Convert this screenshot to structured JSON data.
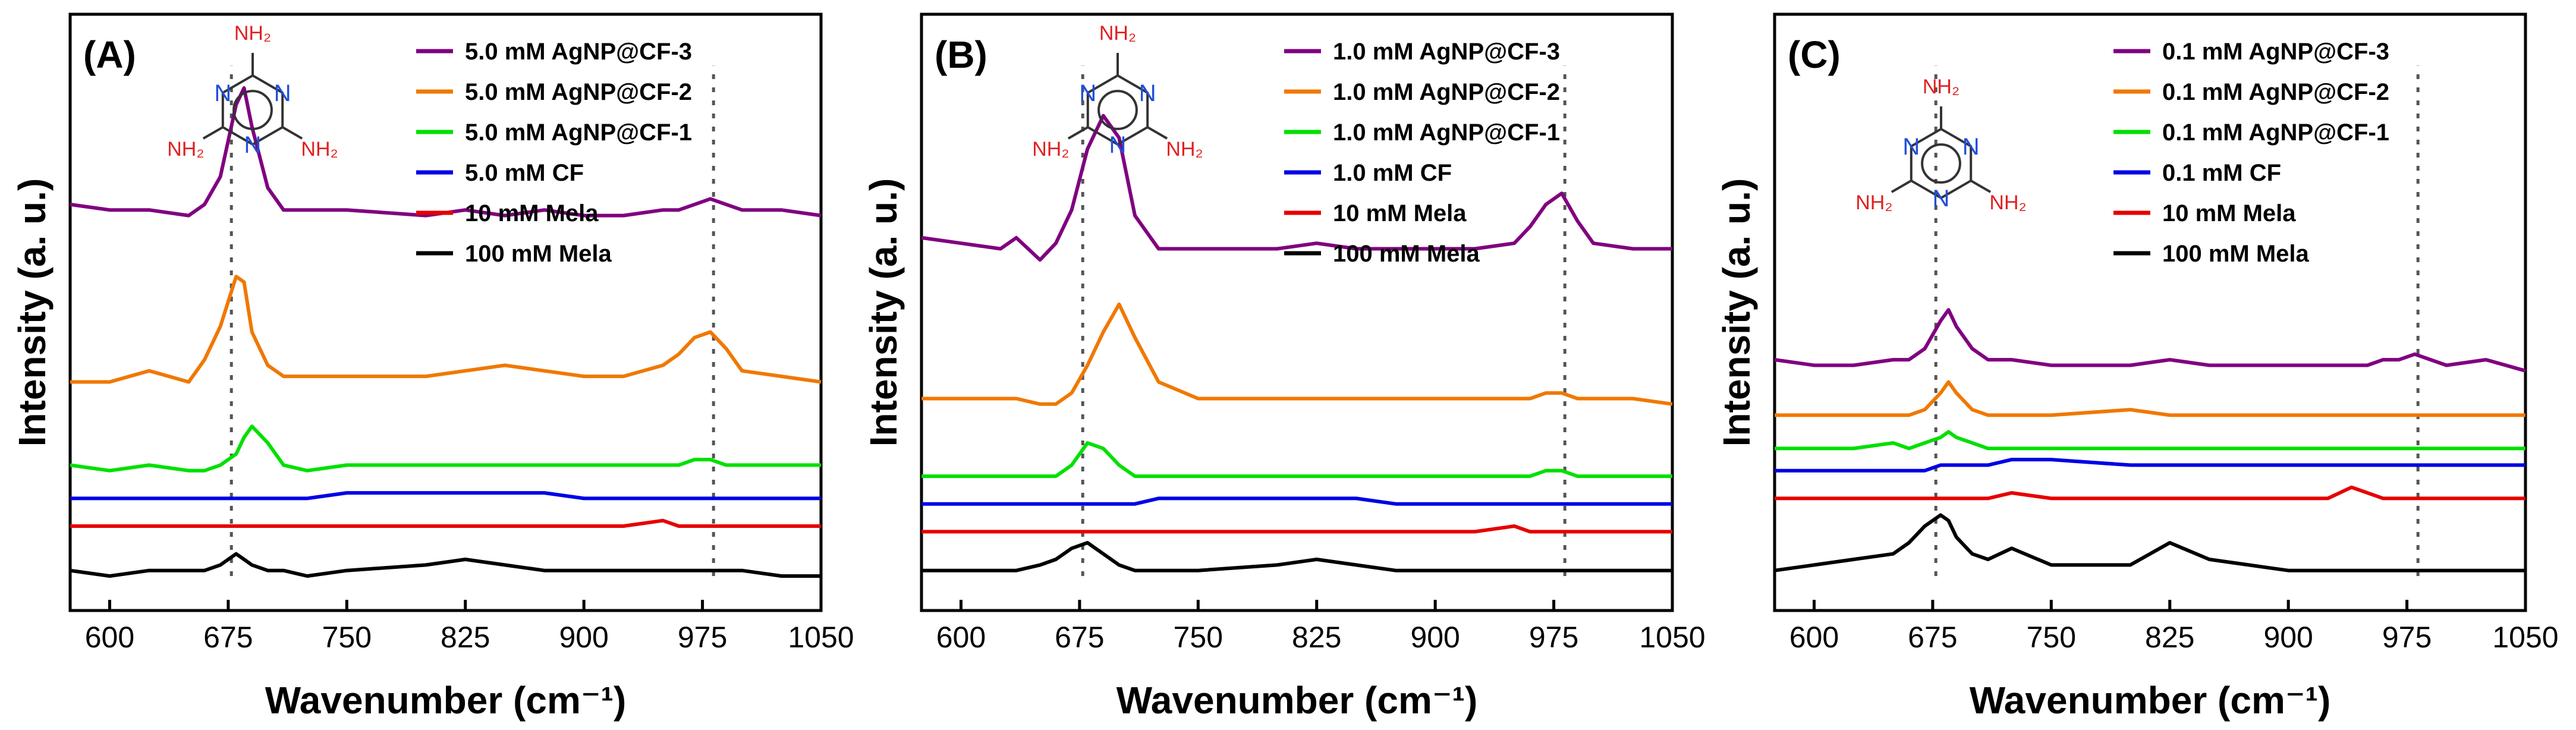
{
  "figure": {
    "xlabel": "Wavenumber (cm⁻¹)",
    "ylabel": "Intensity (a. u.)",
    "series_colors": {
      "AgNP@CF-3": "#800080",
      "AgNP@CF-2": "#f07800",
      "AgNP@CF-1": "#00e000",
      "CF": "#0000e6",
      "10 mM Mela": "#e60000",
      "100 mM Mela": "#000000"
    },
    "molecule": {
      "name": "melamine",
      "ring_atom": "N",
      "substituent": "NH₂"
    }
  },
  "chart_data": [
    {
      "type": "line",
      "panel_label": "(A)",
      "xlabel": "Wavenumber (cm⁻¹)",
      "ylabel": "Intensity (a. u.)",
      "xlim": [
        575,
        1050
      ],
      "ylim": [
        0,
        1
      ],
      "xticks": [
        600,
        675,
        750,
        825,
        900,
        975,
        1050
      ],
      "x": [
        575,
        600,
        625,
        650,
        660,
        670,
        680,
        685,
        690,
        700,
        710,
        725,
        750,
        800,
        825,
        850,
        875,
        900,
        925,
        950,
        960,
        970,
        980,
        990,
        1000,
        1025,
        1050
      ],
      "reference_lines": [
        677,
        982
      ],
      "legend": [
        "5.0 mM AgNP@CF-3",
        "5.0 mM AgNP@CF-2",
        "5.0 mM AgNP@CF-1",
        "5.0 mM CF",
        "10 mM Mela",
        "100 mM Mela"
      ],
      "series": [
        {
          "name": "5.0 mM AgNP@CF-3",
          "values": [
            0.7,
            0.69,
            0.69,
            0.68,
            0.7,
            0.75,
            0.88,
            0.91,
            0.84,
            0.73,
            0.69,
            0.69,
            0.69,
            0.68,
            0.69,
            0.68,
            0.69,
            0.68,
            0.68,
            0.69,
            0.69,
            0.7,
            0.71,
            0.7,
            0.69,
            0.69,
            0.68
          ]
        },
        {
          "name": "5.0 mM AgNP@CF-2",
          "values": [
            0.38,
            0.38,
            0.4,
            0.38,
            0.42,
            0.48,
            0.57,
            0.56,
            0.47,
            0.41,
            0.39,
            0.39,
            0.39,
            0.39,
            0.4,
            0.41,
            0.4,
            0.39,
            0.39,
            0.41,
            0.43,
            0.46,
            0.47,
            0.44,
            0.4,
            0.39,
            0.38
          ]
        },
        {
          "name": "5.0 mM AgNP@CF-1",
          "values": [
            0.23,
            0.22,
            0.23,
            0.22,
            0.22,
            0.23,
            0.25,
            0.28,
            0.3,
            0.27,
            0.23,
            0.22,
            0.23,
            0.23,
            0.23,
            0.23,
            0.23,
            0.23,
            0.23,
            0.23,
            0.23,
            0.24,
            0.24,
            0.23,
            0.23,
            0.23,
            0.23
          ]
        },
        {
          "name": "5.0 mM CF",
          "values": [
            0.17,
            0.17,
            0.17,
            0.17,
            0.17,
            0.17,
            0.17,
            0.17,
            0.17,
            0.17,
            0.17,
            0.17,
            0.18,
            0.18,
            0.18,
            0.18,
            0.18,
            0.17,
            0.17,
            0.17,
            0.17,
            0.17,
            0.17,
            0.17,
            0.17,
            0.17,
            0.17
          ]
        },
        {
          "name": "10 mM Mela",
          "values": [
            0.12,
            0.12,
            0.12,
            0.12,
            0.12,
            0.12,
            0.12,
            0.12,
            0.12,
            0.12,
            0.12,
            0.12,
            0.12,
            0.12,
            0.12,
            0.12,
            0.12,
            0.12,
            0.12,
            0.13,
            0.12,
            0.12,
            0.12,
            0.12,
            0.12,
            0.12,
            0.12
          ]
        },
        {
          "name": "100 mM Mela",
          "values": [
            0.04,
            0.03,
            0.04,
            0.04,
            0.04,
            0.05,
            0.07,
            0.06,
            0.05,
            0.04,
            0.04,
            0.03,
            0.04,
            0.05,
            0.06,
            0.05,
            0.04,
            0.04,
            0.04,
            0.04,
            0.04,
            0.04,
            0.04,
            0.04,
            0.04,
            0.03,
            0.03
          ]
        }
      ]
    },
    {
      "type": "line",
      "panel_label": "(B)",
      "xlabel": "Wavenumber (cm⁻¹)",
      "ylabel": "Intensity (a. u.)",
      "xlim": [
        575,
        1050
      ],
      "ylim": [
        0,
        1
      ],
      "xticks": [
        600,
        675,
        750,
        825,
        900,
        975,
        1050
      ],
      "x": [
        575,
        600,
        625,
        635,
        650,
        660,
        670,
        680,
        690,
        700,
        710,
        725,
        750,
        800,
        825,
        850,
        875,
        900,
        925,
        950,
        960,
        970,
        980,
        990,
        1000,
        1025,
        1050
      ],
      "reference_lines": [
        677,
        982
      ],
      "legend": [
        "1.0 mM AgNP@CF-3",
        "1.0 mM AgNP@CF-2",
        "1.0 mM AgNP@CF-1",
        "1.0 mM CF",
        "10 mM Mela",
        "100 mM Mela"
      ],
      "series": [
        {
          "name": "1.0 mM AgNP@CF-3",
          "values": [
            0.64,
            0.63,
            0.62,
            0.64,
            0.6,
            0.63,
            0.69,
            0.8,
            0.86,
            0.82,
            0.68,
            0.62,
            0.62,
            0.62,
            0.63,
            0.62,
            0.62,
            0.62,
            0.62,
            0.63,
            0.66,
            0.7,
            0.72,
            0.67,
            0.63,
            0.62,
            0.62
          ]
        },
        {
          "name": "1.0 mM AgNP@CF-2",
          "values": [
            0.35,
            0.35,
            0.35,
            0.35,
            0.34,
            0.34,
            0.36,
            0.41,
            0.47,
            0.52,
            0.46,
            0.38,
            0.35,
            0.35,
            0.35,
            0.35,
            0.35,
            0.35,
            0.35,
            0.35,
            0.35,
            0.36,
            0.36,
            0.35,
            0.35,
            0.35,
            0.34
          ]
        },
        {
          "name": "1.0 mM AgNP@CF-1",
          "values": [
            0.21,
            0.21,
            0.21,
            0.21,
            0.21,
            0.21,
            0.23,
            0.27,
            0.26,
            0.23,
            0.21,
            0.21,
            0.21,
            0.21,
            0.21,
            0.21,
            0.21,
            0.21,
            0.21,
            0.21,
            0.21,
            0.22,
            0.22,
            0.21,
            0.21,
            0.21,
            0.21
          ]
        },
        {
          "name": "1.0 mM CF",
          "values": [
            0.16,
            0.16,
            0.16,
            0.16,
            0.16,
            0.16,
            0.16,
            0.16,
            0.16,
            0.16,
            0.16,
            0.17,
            0.17,
            0.17,
            0.17,
            0.17,
            0.16,
            0.16,
            0.16,
            0.16,
            0.16,
            0.16,
            0.16,
            0.16,
            0.16,
            0.16,
            0.16
          ]
        },
        {
          "name": "10 mM Mela",
          "values": [
            0.11,
            0.11,
            0.11,
            0.11,
            0.11,
            0.11,
            0.11,
            0.11,
            0.11,
            0.11,
            0.11,
            0.11,
            0.11,
            0.11,
            0.11,
            0.11,
            0.11,
            0.11,
            0.11,
            0.12,
            0.11,
            0.11,
            0.11,
            0.11,
            0.11,
            0.11,
            0.11
          ]
        },
        {
          "name": "100 mM Mela",
          "values": [
            0.04,
            0.04,
            0.04,
            0.04,
            0.05,
            0.06,
            0.08,
            0.09,
            0.07,
            0.05,
            0.04,
            0.04,
            0.04,
            0.05,
            0.06,
            0.05,
            0.04,
            0.04,
            0.04,
            0.04,
            0.04,
            0.04,
            0.04,
            0.04,
            0.04,
            0.04,
            0.04
          ]
        }
      ]
    },
    {
      "type": "line",
      "panel_label": "(C)",
      "xlabel": "Wavenumber (cm⁻¹)",
      "ylabel": "Intensity (a. u.)",
      "xlim": [
        575,
        1050
      ],
      "ylim": [
        0,
        1
      ],
      "xticks": [
        600,
        675,
        750,
        825,
        900,
        975,
        1050
      ],
      "x": [
        575,
        600,
        625,
        650,
        660,
        670,
        680,
        685,
        690,
        700,
        710,
        725,
        750,
        800,
        825,
        850,
        875,
        900,
        925,
        940,
        950,
        960,
        970,
        980,
        1000,
        1025,
        1050
      ],
      "reference_lines": [
        677,
        982
      ],
      "legend": [
        "0.1 mM AgNP@CF-3",
        "0.1 mM AgNP@CF-2",
        "0.1 mM AgNP@CF-1",
        "0.1 mM CF",
        "10 mM Mela",
        "100 mM Mela"
      ],
      "series": [
        {
          "name": "0.1 mM AgNP@CF-3",
          "values": [
            0.42,
            0.41,
            0.41,
            0.42,
            0.42,
            0.44,
            0.49,
            0.51,
            0.48,
            0.44,
            0.42,
            0.42,
            0.41,
            0.41,
            0.42,
            0.41,
            0.41,
            0.41,
            0.41,
            0.41,
            0.41,
            0.42,
            0.42,
            0.43,
            0.41,
            0.42,
            0.4
          ]
        },
        {
          "name": "0.1 mM AgNP@CF-2",
          "values": [
            0.32,
            0.32,
            0.32,
            0.32,
            0.32,
            0.33,
            0.36,
            0.38,
            0.36,
            0.33,
            0.32,
            0.32,
            0.32,
            0.33,
            0.32,
            0.32,
            0.32,
            0.32,
            0.32,
            0.32,
            0.32,
            0.32,
            0.32,
            0.32,
            0.32,
            0.32,
            0.32
          ]
        },
        {
          "name": "0.1 mM AgNP@CF-1",
          "values": [
            0.26,
            0.26,
            0.26,
            0.27,
            0.26,
            0.27,
            0.28,
            0.29,
            0.28,
            0.27,
            0.26,
            0.26,
            0.26,
            0.26,
            0.26,
            0.26,
            0.26,
            0.26,
            0.26,
            0.26,
            0.26,
            0.26,
            0.26,
            0.26,
            0.26,
            0.26,
            0.26
          ]
        },
        {
          "name": "0.1 mM CF",
          "values": [
            0.22,
            0.22,
            0.22,
            0.22,
            0.22,
            0.22,
            0.23,
            0.23,
            0.23,
            0.23,
            0.23,
            0.24,
            0.24,
            0.23,
            0.23,
            0.23,
            0.23,
            0.23,
            0.23,
            0.23,
            0.23,
            0.23,
            0.23,
            0.23,
            0.23,
            0.23,
            0.23
          ]
        },
        {
          "name": "10 mM Mela",
          "values": [
            0.17,
            0.17,
            0.17,
            0.17,
            0.17,
            0.17,
            0.17,
            0.17,
            0.17,
            0.17,
            0.17,
            0.18,
            0.17,
            0.17,
            0.17,
            0.17,
            0.17,
            0.17,
            0.17,
            0.19,
            0.18,
            0.17,
            0.17,
            0.17,
            0.17,
            0.17,
            0.17
          ]
        },
        {
          "name": "100 mM Mela",
          "values": [
            0.04,
            0.05,
            0.06,
            0.07,
            0.09,
            0.12,
            0.14,
            0.13,
            0.1,
            0.07,
            0.06,
            0.08,
            0.05,
            0.05,
            0.09,
            0.06,
            0.05,
            0.04,
            0.04,
            0.04,
            0.04,
            0.04,
            0.04,
            0.04,
            0.04,
            0.04,
            0.04
          ]
        }
      ]
    }
  ]
}
